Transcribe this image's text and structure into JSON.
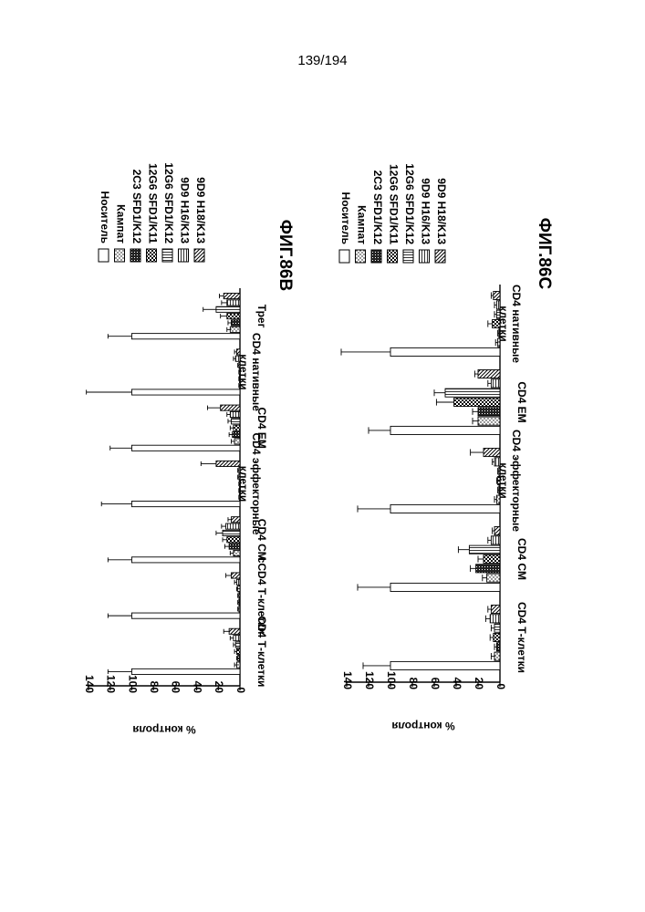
{
  "page_number": "139/194",
  "colors": {
    "ink": "#000000",
    "paper": "#ffffff"
  },
  "legend": {
    "entries": [
      {
        "label": "Носитель",
        "pattern": "open"
      },
      {
        "label": "Кампат",
        "pattern": "dots"
      },
      {
        "label": "2C3 SFD1/K12",
        "pattern": "dense"
      },
      {
        "label": "12G6 SFD1/K11",
        "pattern": "checker"
      },
      {
        "label": "12G6 SFD1/K12",
        "pattern": "hlines"
      },
      {
        "label": "9D9 H16/K13",
        "pattern": "vlines"
      },
      {
        "label": "9D9 H18/K13",
        "pattern": "diag"
      }
    ]
  },
  "chart_data": [
    {
      "type": "bar",
      "orientation": "rotated-90",
      "figure_label": "ФИГ.86B",
      "ylabel": "% контроля",
      "ylim": [
        0,
        140
      ],
      "yticks": [
        "0",
        "20",
        "40",
        "60",
        "80",
        "100",
        "120",
        "140"
      ],
      "categories": [
        {
          "lines": [
            "CD4 Т-клетки"
          ]
        },
        {
          "lines": [
            "сCD4 Т-клетки"
          ]
        },
        {
          "lines": [
            "CD4 CM"
          ]
        },
        {
          "lines": [
            "CD4 эффекторные",
            "клетки"
          ]
        },
        {
          "lines": [
            "CD4 EM"
          ]
        },
        {
          "lines": [
            "CD4 нативные",
            "клетки"
          ]
        },
        {
          "lines": [
            "Трег"
          ]
        }
      ],
      "series": [
        {
          "name": "Носитель",
          "values": [
            100,
            100,
            100,
            100,
            100,
            100,
            100
          ],
          "errors": [
            22,
            22,
            22,
            28,
            20,
            42,
            22
          ]
        },
        {
          "name": "Кампат",
          "values": [
            3,
            1,
            6,
            0.5,
            5,
            0.5,
            9
          ],
          "errors": [
            2,
            1,
            3,
            0.5,
            3,
            0.5,
            3
          ]
        },
        {
          "name": "2C3 SFD1/K12",
          "values": [
            2,
            1,
            10,
            0.5,
            7,
            0.5,
            8
          ],
          "errors": [
            1,
            1,
            4,
            0.5,
            3,
            0.5,
            3
          ]
        },
        {
          "name": "12G6 SFD1/K11",
          "values": [
            3,
            1,
            12,
            0.5,
            6,
            0.5,
            12
          ],
          "errors": [
            2,
            1,
            4,
            0.5,
            3,
            0.5,
            6
          ]
        },
        {
          "name": "12G6 SFD1/K12",
          "values": [
            4,
            2,
            16,
            1,
            8,
            1,
            22
          ],
          "errors": [
            2,
            1,
            6,
            1,
            3,
            1,
            12
          ]
        },
        {
          "name": "9D9 H16/K13",
          "values": [
            6,
            3,
            13,
            1,
            9,
            4,
            12
          ],
          "errors": [
            3,
            2,
            4,
            1,
            3,
            2,
            5
          ]
        },
        {
          "name": "9D9 H18/K13",
          "values": [
            10,
            8,
            8,
            22,
            18,
            3,
            15
          ],
          "errors": [
            5,
            5,
            3,
            14,
            12,
            2,
            4
          ]
        }
      ]
    },
    {
      "type": "bar",
      "orientation": "rotated-90",
      "figure_label": "ФИГ.86C",
      "ylabel": "% контроля",
      "ylim": [
        0,
        140
      ],
      "yticks": [
        "0",
        "20",
        "40",
        "60",
        "80",
        "100",
        "120",
        "140"
      ],
      "categories": [
        {
          "lines": [
            "CD4 Т-клетки"
          ]
        },
        {
          "lines": [
            "CD4 CM"
          ]
        },
        {
          "lines": [
            "CD4 эффекторные",
            "клетки"
          ]
        },
        {
          "lines": [
            "CD4 EM"
          ]
        },
        {
          "lines": [
            "CD4 нативные",
            "клетки"
          ]
        }
      ],
      "series": [
        {
          "name": "Носитель",
          "values": [
            100,
            100,
            100,
            100,
            100
          ],
          "errors": [
            25,
            30,
            30,
            20,
            45
          ]
        },
        {
          "name": "Кампат",
          "values": [
            5,
            12,
            3,
            20,
            2
          ],
          "errors": [
            3,
            4,
            2,
            5,
            2
          ]
        },
        {
          "name": "2C3 SFD1/K12",
          "values": [
            3,
            22,
            1,
            20,
            1
          ],
          "errors": [
            2,
            5,
            1,
            5,
            1
          ]
        },
        {
          "name": "12G6 SFD1/K11",
          "values": [
            6,
            15,
            2,
            42,
            7
          ],
          "errors": [
            3,
            5,
            1,
            16,
            4
          ]
        },
        {
          "name": "12G6 SFD1/K12",
          "values": [
            5,
            28,
            1,
            50,
            3
          ],
          "errors": [
            3,
            10,
            1,
            10,
            2
          ]
        },
        {
          "name": "9D9 H16/K13",
          "values": [
            9,
            8,
            5,
            8,
            3
          ],
          "errors": [
            4,
            3,
            2,
            3,
            2
          ]
        },
        {
          "name": "9D9 H18/K13",
          "values": [
            8,
            5,
            15,
            20,
            6
          ],
          "errors": [
            3,
            2,
            12,
            3,
            2
          ]
        }
      ]
    }
  ]
}
